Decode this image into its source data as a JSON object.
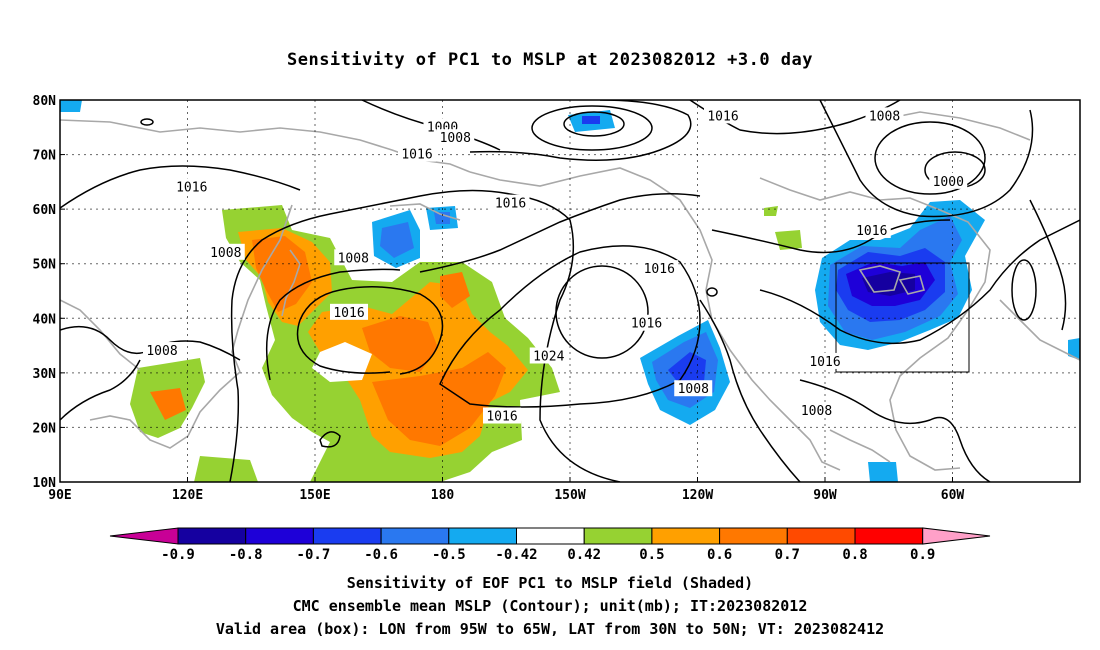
{
  "title": "Sensitivity of PC1 to MSLP at 2023082012 +3.0 day",
  "axes": {
    "lat_ticks": [
      "80N",
      "70N",
      "60N",
      "50N",
      "40N",
      "30N",
      "20N",
      "10N"
    ],
    "lon_ticks": [
      "90E",
      "120E",
      "150E",
      "180",
      "150W",
      "120W",
      "90W",
      "60W"
    ],
    "gridlines": "dotted"
  },
  "contour_labels": [
    {
      "text": "1000",
      "lon": 180,
      "lat": 75
    },
    {
      "text": "1008",
      "lon": 183,
      "lat": 73
    },
    {
      "text": "1016",
      "lon": 174,
      "lat": 70
    },
    {
      "text": "1016",
      "lon": 121,
      "lat": 64
    },
    {
      "text": "1016",
      "lon": 196,
      "lat": 61
    },
    {
      "text": "1008",
      "lon": 129,
      "lat": 52
    },
    {
      "text": "1008",
      "lon": 159,
      "lat": 51
    },
    {
      "text": "1016",
      "lon": 158,
      "lat": 41
    },
    {
      "text": "1008",
      "lon": 114,
      "lat": 34
    },
    {
      "text": "1024",
      "lon": 205,
      "lat": 33
    },
    {
      "text": "1016",
      "lon": 231,
      "lat": 49
    },
    {
      "text": "1016",
      "lon": 228,
      "lat": 39
    },
    {
      "text": "1008",
      "lon": 239,
      "lat": 27
    },
    {
      "text": "1016",
      "lon": 194,
      "lat": 22
    },
    {
      "text": "1016",
      "lon": 270,
      "lat": 32
    },
    {
      "text": "1016",
      "lon": 281,
      "lat": 56
    },
    {
      "text": "1008",
      "lon": 284,
      "lat": 77
    },
    {
      "text": "1000",
      "lon": 299,
      "lat": 65
    },
    {
      "text": "1008",
      "lon": 268,
      "lat": 23
    },
    {
      "text": "1016",
      "lon": 246,
      "lat": 77
    }
  ],
  "valid_box": {
    "lon_min": 265,
    "lon_max": 295,
    "lat_min": 30,
    "lat_max": 50
  },
  "colorbar": {
    "labels": [
      "-0.9",
      "-0.8",
      "-0.7",
      "-0.6",
      "-0.5",
      "-0.42",
      "0.42",
      "0.5",
      "0.6",
      "0.7",
      "0.8",
      "0.9"
    ],
    "colors": [
      "#1500a0",
      "#1e00d8",
      "#1a3cf0",
      "#2a78f0",
      "#14aaf0",
      "#ffffff",
      "#96d232",
      "#ffa000",
      "#ff7800",
      "#ff4a00",
      "#ff0000"
    ],
    "low_end_color": "#c80096",
    "high_end_color": "#ffa0c8"
  },
  "captions": {
    "line1": "Sensitivity of EOF PC1 to MSLP field (Shaded)",
    "line2": "CMC ensemble mean MSLP (Contour); unit(mb); IT:2023082012",
    "line3": "Valid area (box): LON from 95W to 65W, LAT from 30N to 50N; VT: 2023082412"
  }
}
